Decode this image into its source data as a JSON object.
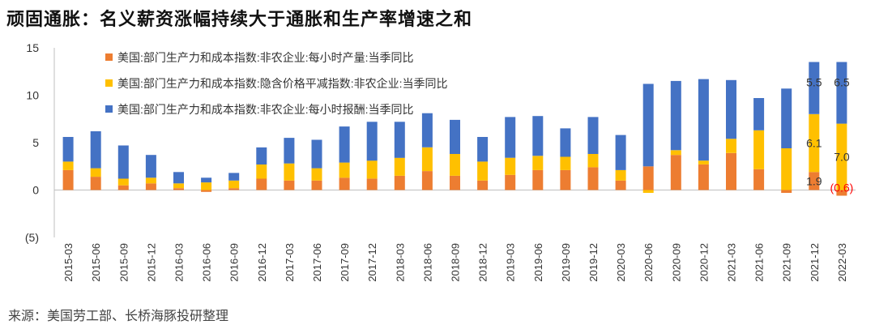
{
  "title": "顽固通胀：名义薪资涨幅持续大于通胀和生产率增速之和",
  "source": "来源：美国劳工部、长桥海豚投研整理",
  "colors": {
    "orange": "#ED7D31",
    "yellow": "#FFC000",
    "blue": "#4472C4",
    "axis": "#BFBFBF",
    "red": "#FF0000"
  },
  "chart_data": {
    "type": "bar",
    "stacked": true,
    "title": "顽固通胀：名义薪资涨幅持续大于通胀和生产率增速之和",
    "xlabel": "",
    "ylabel": "",
    "ylim": [
      -5,
      15
    ],
    "yticks": [
      15,
      10,
      5,
      0,
      -5
    ],
    "ytick_labels": [
      "15",
      "10",
      "5",
      "0",
      "(5)"
    ],
    "legend_position": "top-left",
    "grid": false,
    "categories": [
      "2015-03",
      "2015-06",
      "2015-09",
      "2015-12",
      "2016-03",
      "2016-06",
      "2016-09",
      "2016-12",
      "2017-03",
      "2017-06",
      "2017-09",
      "2017-12",
      "2018-03",
      "2018-06",
      "2018-09",
      "2018-12",
      "2019-03",
      "2019-06",
      "2019-09",
      "2019-12",
      "2020-03",
      "2020-06",
      "2020-09",
      "2020-12",
      "2021-03",
      "2021-06",
      "2021-09",
      "2021-12",
      "2022-03"
    ],
    "series": [
      {
        "name": "美国:部门生产力和成本指数:非农企业:每小时产量:当季同比",
        "color": "#ED7D31",
        "values": [
          2.1,
          1.4,
          0.5,
          0.7,
          0.2,
          -0.2,
          0.2,
          1.2,
          1.0,
          1.0,
          1.3,
          1.2,
          1.5,
          2.0,
          1.5,
          1.0,
          1.6,
          2.1,
          2.1,
          2.4,
          1.0,
          2.5,
          3.7,
          2.7,
          3.9,
          2.2,
          -0.3,
          1.9,
          -0.6
        ]
      },
      {
        "name": "美国:部门生产力和成本指数:隐含价格平减指数:非农企业:当季同比",
        "color": "#FFC000",
        "values": [
          0.9,
          0.9,
          0.7,
          0.6,
          0.5,
          0.8,
          0.8,
          1.5,
          1.8,
          1.3,
          1.6,
          1.9,
          1.9,
          2.5,
          2.3,
          2.0,
          1.8,
          1.5,
          1.4,
          1.4,
          1.1,
          -0.3,
          0.5,
          0.4,
          1.5,
          4.1,
          4.4,
          6.1,
          7.0
        ]
      },
      {
        "name": "美国:部门生产力和成本指数:非农企业:每小时报酬:当季同比",
        "color": "#4472C4",
        "values": [
          2.6,
          3.9,
          3.5,
          2.4,
          1.2,
          0.5,
          0.8,
          1.8,
          2.7,
          3.0,
          3.8,
          4.1,
          3.8,
          3.6,
          3.6,
          2.6,
          4.3,
          4.2,
          3.0,
          3.9,
          3.7,
          8.7,
          7.3,
          8.6,
          6.2,
          3.4,
          6.3,
          5.5,
          6.5
        ]
      }
    ],
    "annotations": [
      {
        "category": "2021-12",
        "series": 0,
        "text": "1.9",
        "color": "#333333"
      },
      {
        "category": "2021-12",
        "series": 1,
        "text": "6.1",
        "color": "#333333"
      },
      {
        "category": "2021-12",
        "series": 2,
        "text": "5.5",
        "color": "#333333"
      },
      {
        "category": "2022-03",
        "series": 0,
        "text": "(0.6)",
        "color": "#FF0000"
      },
      {
        "category": "2022-03",
        "series": 1,
        "text": "7.0",
        "color": "#333333"
      },
      {
        "category": "2022-03",
        "series": 2,
        "text": "6.5",
        "color": "#333333"
      }
    ]
  }
}
